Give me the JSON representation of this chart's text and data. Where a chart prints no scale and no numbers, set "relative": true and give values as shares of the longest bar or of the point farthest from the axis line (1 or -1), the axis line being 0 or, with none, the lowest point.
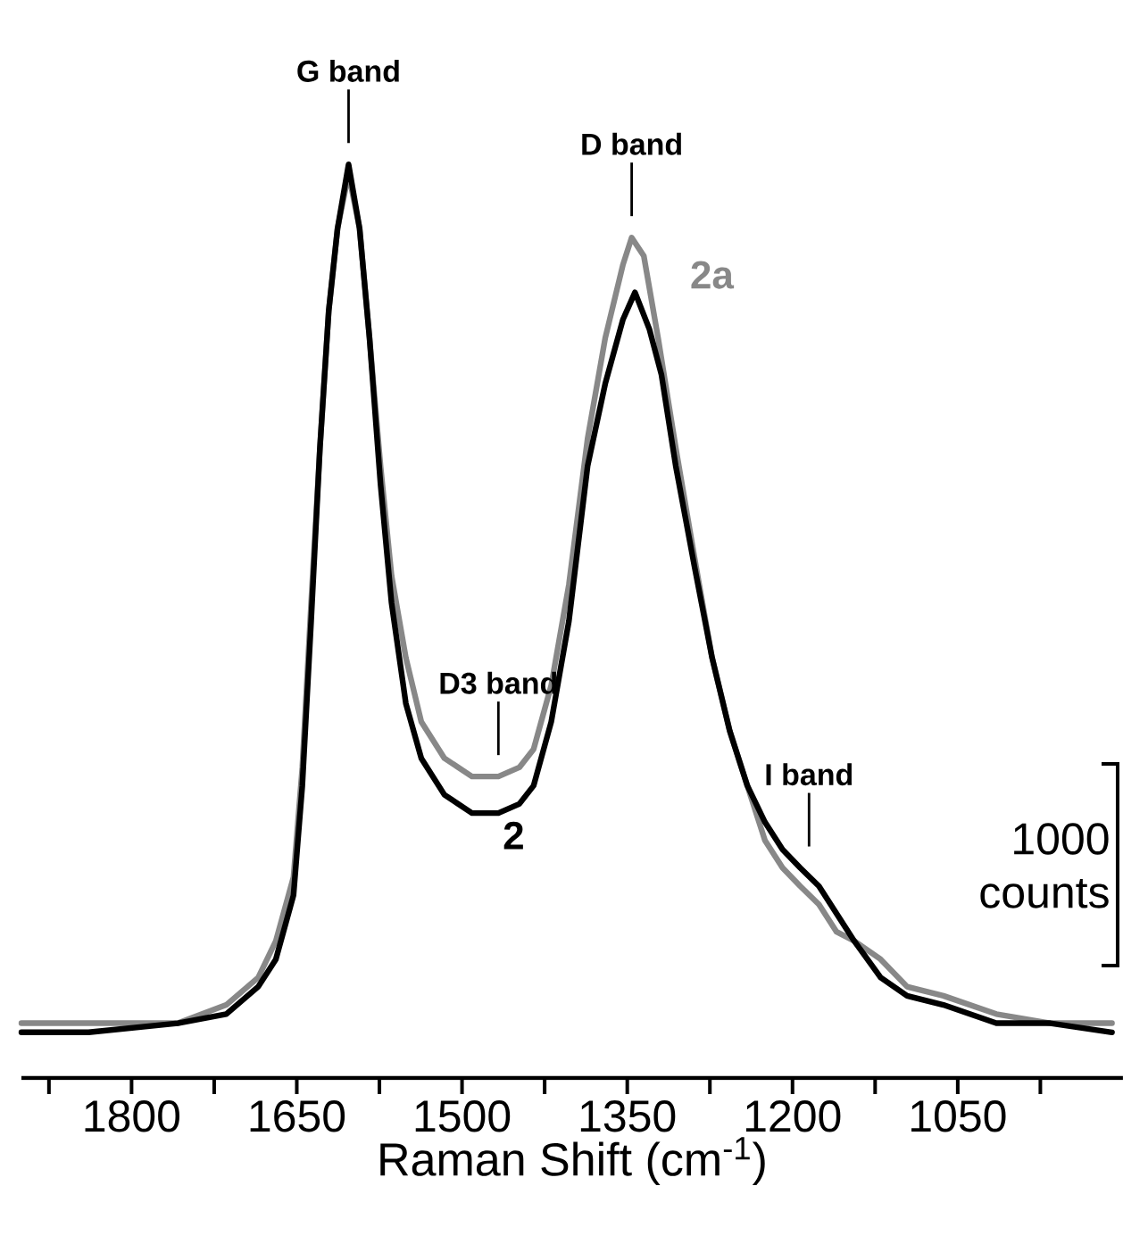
{
  "chart_data": {
    "type": "line",
    "xlabel": "Raman Shift (cm$^{-1}$)",
    "relative": true,
    "xlim": [
      1900,
      900
    ],
    "xticks": [
      {
        "value": 1875,
        "label": null
      },
      1800,
      {
        "value": 1725,
        "label": null
      },
      1650,
      {
        "value": 1575,
        "label": null
      },
      1500,
      {
        "value": 1425,
        "label": null
      },
      1350,
      {
        "value": 1275,
        "label": null
      },
      1200,
      {
        "value": 1125,
        "label": null
      },
      1050,
      {
        "value": 975,
        "label": null
      }
    ],
    "marker": "none",
    "line_style": "solid",
    "series": [
      {
        "name": "2a",
        "color": "#888888",
        "x": [
          1900,
          1839,
          1758,
          1714,
          1685,
          1669,
          1653,
          1645,
          1637,
          1629,
          1621,
          1613,
          1603,
          1593,
          1584,
          1574,
          1564,
          1551,
          1537,
          1516,
          1491,
          1467,
          1448,
          1435,
          1419,
          1403,
          1386,
          1370,
          1354,
          1346,
          1335,
          1322,
          1306,
          1289,
          1273,
          1257,
          1241,
          1225,
          1209,
          1193,
          1176,
          1160,
          1144,
          1120,
          1096,
          1063,
          1015,
          966,
          910
        ],
        "values": [
          0.06,
          0.06,
          0.06,
          0.08,
          0.11,
          0.15,
          0.22,
          0.34,
          0.52,
          0.69,
          0.84,
          0.93,
          0.99,
          0.93,
          0.81,
          0.67,
          0.55,
          0.46,
          0.39,
          0.35,
          0.33,
          0.33,
          0.34,
          0.36,
          0.43,
          0.54,
          0.7,
          0.81,
          0.89,
          0.92,
          0.9,
          0.81,
          0.69,
          0.57,
          0.46,
          0.38,
          0.32,
          0.26,
          0.23,
          0.21,
          0.19,
          0.16,
          0.15,
          0.13,
          0.1,
          0.09,
          0.07,
          0.06,
          0.06
        ]
      },
      {
        "name": "2",
        "color": "#000000",
        "x": [
          1900,
          1839,
          1758,
          1714,
          1685,
          1669,
          1653,
          1645,
          1637,
          1629,
          1621,
          1613,
          1603,
          1593,
          1584,
          1574,
          1564,
          1551,
          1537,
          1516,
          1491,
          1467,
          1448,
          1435,
          1419,
          1403,
          1386,
          1370,
          1354,
          1343,
          1330,
          1319,
          1306,
          1289,
          1273,
          1257,
          1241,
          1225,
          1209,
          1193,
          1176,
          1160,
          1144,
          1120,
          1096,
          1063,
          1015,
          966,
          910
        ],
        "values": [
          0.05,
          0.05,
          0.06,
          0.07,
          0.1,
          0.13,
          0.2,
          0.32,
          0.5,
          0.69,
          0.84,
          0.93,
          1.0,
          0.93,
          0.81,
          0.65,
          0.52,
          0.41,
          0.35,
          0.31,
          0.29,
          0.29,
          0.3,
          0.32,
          0.39,
          0.5,
          0.67,
          0.76,
          0.83,
          0.86,
          0.82,
          0.77,
          0.67,
          0.56,
          0.46,
          0.38,
          0.32,
          0.28,
          0.25,
          0.23,
          0.21,
          0.18,
          0.15,
          0.11,
          0.09,
          0.08,
          0.06,
          0.06,
          0.05
        ]
      }
    ],
    "annotations": [
      {
        "text": "G band",
        "x": 1603,
        "y": 1.0
      },
      {
        "text": "D band",
        "x": 1346,
        "y": 0.92
      },
      {
        "text": "D3 band",
        "x": 1467,
        "y": 0.33
      },
      {
        "text": "I band",
        "x": 1185,
        "y": 0.23
      },
      "1000 counts"
    ]
  }
}
